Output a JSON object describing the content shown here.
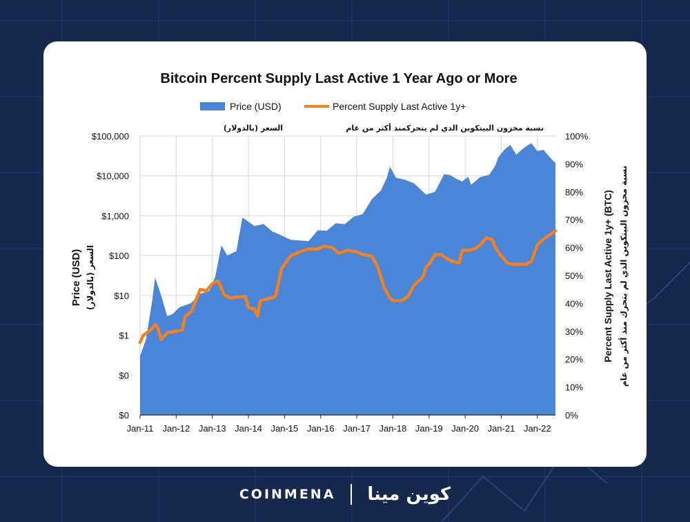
{
  "brand": {
    "name_en": "COINMENA",
    "name_ar": "كوين مينا"
  },
  "chart_data": {
    "type": "area+line",
    "title": "Bitcoin Percent Supply Last Active 1 Year Ago or More",
    "legend": [
      {
        "label": "Price (USD)",
        "color": "#4a86d8",
        "style": "area"
      },
      {
        "label": "Percent Supply Last Active 1y+",
        "color": "#f7801e",
        "style": "line"
      }
    ],
    "legend_position": "top-center",
    "annotations": {
      "left_ar": "السعر (بالدولار)",
      "right_ar": "نسبة مخزون البيتكوين الذي لم يتحركمنذ أكثر من عام"
    },
    "y_left": {
      "label": "Price (USD)",
      "label_ar": "السعر (بالدولار)",
      "scale": "log",
      "ticks": [
        "$0",
        "$0",
        "$1",
        "$10",
        "$100",
        "$1,000",
        "$10,000",
        "$100,000"
      ]
    },
    "y_right": {
      "label": "Percent Supply Last Active 1y+ (BTC)",
      "label_ar": "نسبة مخزون البيتكوين الذي لم يتحرك منذ أكثر من عام",
      "range": [
        0,
        100
      ],
      "ticks": [
        "0%",
        "10%",
        "20%",
        "30%",
        "40%",
        "50%",
        "60%",
        "70%",
        "80%",
        "90%",
        "100%"
      ]
    },
    "x_ticks": [
      "Jan-11",
      "Jan-12",
      "Jan-13",
      "Jan-14",
      "Jan-15",
      "Jan-16",
      "Jan-17",
      "Jan-18",
      "Jan-19",
      "Jan-20",
      "Jan-21",
      "Jan-22"
    ],
    "x_range": [
      "2011-01",
      "2022-07"
    ],
    "grid": true,
    "price_series": {
      "name": "Price (USD)",
      "points": [
        [
          "2011-01",
          0.3
        ],
        [
          "2011-03",
          0.8
        ],
        [
          "2011-05",
          7
        ],
        [
          "2011-06",
          28
        ],
        [
          "2011-08",
          10
        ],
        [
          "2011-10",
          3
        ],
        [
          "2011-12",
          3.5
        ],
        [
          "2012-02",
          5
        ],
        [
          "2012-06",
          6.5
        ],
        [
          "2012-09",
          11
        ],
        [
          "2012-12",
          13
        ],
        [
          "2013-02",
          30
        ],
        [
          "2013-04",
          180
        ],
        [
          "2013-06",
          100
        ],
        [
          "2013-09",
          130
        ],
        [
          "2013-11",
          900
        ],
        [
          "2013-12",
          800
        ],
        [
          "2014-03",
          550
        ],
        [
          "2014-06",
          620
        ],
        [
          "2014-09",
          400
        ],
        [
          "2014-12",
          320
        ],
        [
          "2015-03",
          250
        ],
        [
          "2015-06",
          240
        ],
        [
          "2015-09",
          230
        ],
        [
          "2015-12",
          430
        ],
        [
          "2016-03",
          420
        ],
        [
          "2016-06",
          650
        ],
        [
          "2016-09",
          610
        ],
        [
          "2016-12",
          950
        ],
        [
          "2017-03",
          1100
        ],
        [
          "2017-06",
          2600
        ],
        [
          "2017-09",
          4300
        ],
        [
          "2017-11",
          9000
        ],
        [
          "2017-12",
          17000
        ],
        [
          "2018-02",
          9000
        ],
        [
          "2018-05",
          8000
        ],
        [
          "2018-08",
          6500
        ],
        [
          "2018-11",
          4000
        ],
        [
          "2018-12",
          3400
        ],
        [
          "2019-03",
          4000
        ],
        [
          "2019-06",
          11000
        ],
        [
          "2019-08",
          10500
        ],
        [
          "2019-10",
          8500
        ],
        [
          "2019-12",
          7200
        ],
        [
          "2020-02",
          9500
        ],
        [
          "2020-03",
          6000
        ],
        [
          "2020-06",
          9300
        ],
        [
          "2020-09",
          10700
        ],
        [
          "2020-11",
          18000
        ],
        [
          "2020-12",
          29000
        ],
        [
          "2021-02",
          45000
        ],
        [
          "2021-04",
          60000
        ],
        [
          "2021-06",
          34000
        ],
        [
          "2021-08",
          47000
        ],
        [
          "2021-10",
          60000
        ],
        [
          "2021-11",
          66000
        ],
        [
          "2022-01",
          42000
        ],
        [
          "2022-03",
          45000
        ],
        [
          "2022-05",
          30000
        ],
        [
          "2022-07",
          21000
        ]
      ]
    },
    "supply_series": {
      "name": "Percent Supply Last Active 1y+",
      "points": [
        [
          "2011-01",
          26
        ],
        [
          "2011-02",
          28.5
        ],
        [
          "2011-05",
          31
        ],
        [
          "2011-06",
          32.5
        ],
        [
          "2011-07",
          31
        ],
        [
          "2011-08",
          27
        ],
        [
          "2011-10",
          29.5
        ],
        [
          "2012-01",
          30
        ],
        [
          "2012-03",
          30.5
        ],
        [
          "2012-04",
          35.5
        ],
        [
          "2012-06",
          37
        ],
        [
          "2012-09",
          45
        ],
        [
          "2012-11",
          44.5
        ],
        [
          "2013-01",
          47
        ],
        [
          "2013-03",
          48
        ],
        [
          "2013-05",
          43
        ],
        [
          "2013-07",
          42
        ],
        [
          "2013-12",
          42.5
        ],
        [
          "2014-01",
          38.5
        ],
        [
          "2014-03",
          38
        ],
        [
          "2014-04",
          35.5
        ],
        [
          "2014-05",
          41
        ],
        [
          "2014-07",
          41.5
        ],
        [
          "2014-10",
          42.5
        ],
        [
          "2014-12",
          52.5
        ],
        [
          "2015-03",
          57
        ],
        [
          "2015-06",
          58.5
        ],
        [
          "2015-09",
          59.5
        ],
        [
          "2015-12",
          59.5
        ],
        [
          "2016-02",
          60.5
        ],
        [
          "2016-05",
          60
        ],
        [
          "2016-07",
          58
        ],
        [
          "2016-10",
          59
        ],
        [
          "2017-01",
          58.5
        ],
        [
          "2017-03",
          57.5
        ],
        [
          "2017-06",
          57
        ],
        [
          "2017-08",
          53
        ],
        [
          "2017-10",
          46
        ],
        [
          "2017-12",
          42
        ],
        [
          "2018-01",
          41
        ],
        [
          "2018-04",
          41
        ],
        [
          "2018-06",
          42.5
        ],
        [
          "2018-08",
          46.5
        ],
        [
          "2018-11",
          49.5
        ],
        [
          "2018-12",
          53
        ],
        [
          "2019-01",
          54
        ],
        [
          "2019-03",
          57.5
        ],
        [
          "2019-05",
          57.5
        ],
        [
          "2019-07",
          56
        ],
        [
          "2019-09",
          55
        ],
        [
          "2019-11",
          54.5
        ],
        [
          "2019-12",
          59
        ],
        [
          "2020-02",
          59
        ],
        [
          "2020-04",
          59.5
        ],
        [
          "2020-06",
          61
        ],
        [
          "2020-08",
          63.5
        ],
        [
          "2020-10",
          63
        ],
        [
          "2020-11",
          60
        ],
        [
          "2021-01",
          57
        ],
        [
          "2021-03",
          54.5
        ],
        [
          "2021-05",
          54
        ],
        [
          "2021-07",
          54
        ],
        [
          "2021-09",
          54
        ],
        [
          "2021-11",
          55
        ],
        [
          "2022-01",
          61
        ],
        [
          "2022-03",
          63
        ],
        [
          "2022-05",
          64.5
        ],
        [
          "2022-07",
          66
        ]
      ]
    }
  }
}
